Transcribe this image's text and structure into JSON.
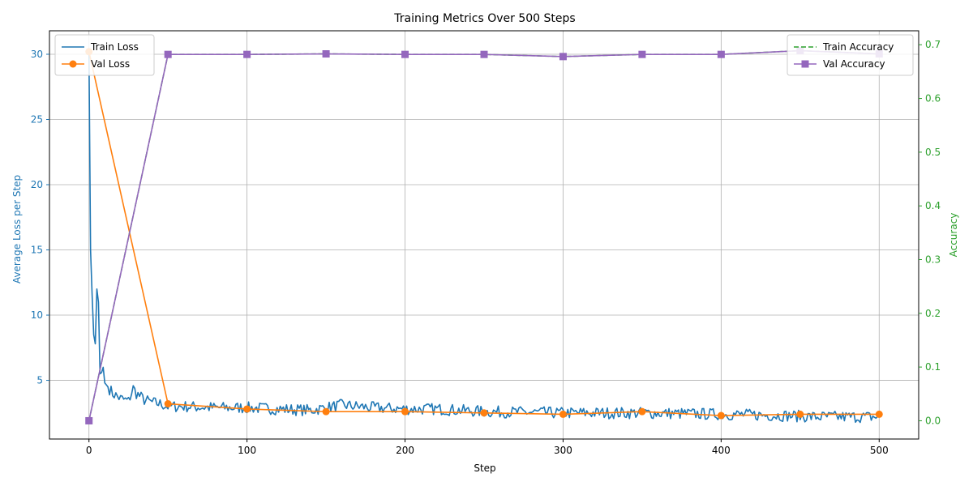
{
  "chart_data": {
    "type": "line",
    "title": "Training Metrics Over 500 Steps",
    "xlabel": "Step",
    "ylabel_left": "Average Loss per Step",
    "ylabel_right": "Accuracy",
    "xlim": [
      -25,
      525
    ],
    "ylim_left": [
      0.5,
      31.8
    ],
    "ylim_right": [
      -0.034,
      0.726
    ],
    "x_ticks": [
      0,
      100,
      200,
      300,
      400,
      500
    ],
    "y_ticks_left": [
      5,
      10,
      15,
      20,
      25,
      30
    ],
    "y_ticks_right": [
      0.0,
      0.1,
      0.2,
      0.3,
      0.4,
      0.5,
      0.6,
      0.7
    ],
    "grid": true,
    "left_axis_color": "#1f77b4",
    "right_axis_color": "#2ca02c",
    "series": [
      {
        "name": "Train Loss",
        "axis": "left",
        "color": "#1f77b4",
        "style": "solid",
        "marker": "none",
        "keypoints": [
          [
            0,
            30.0
          ],
          [
            1,
            15.0
          ],
          [
            2,
            11.5
          ],
          [
            3,
            8.5
          ],
          [
            4,
            7.8
          ],
          [
            5,
            12.0
          ],
          [
            6,
            11.0
          ],
          [
            7,
            5.5
          ],
          [
            8,
            5.6
          ],
          [
            9,
            6.0
          ],
          [
            10,
            4.8
          ],
          [
            12,
            4.5
          ],
          [
            15,
            4.0
          ],
          [
            20,
            3.6
          ],
          [
            25,
            3.4
          ],
          [
            28,
            4.4
          ],
          [
            30,
            4.0
          ],
          [
            35,
            3.5
          ],
          [
            40,
            3.3
          ],
          [
            45,
            3.2
          ],
          [
            50,
            3.0
          ],
          [
            60,
            3.0
          ],
          [
            80,
            2.9
          ],
          [
            100,
            2.9
          ],
          [
            120,
            2.8
          ],
          [
            140,
            2.7
          ],
          [
            160,
            3.1
          ],
          [
            180,
            2.9
          ],
          [
            200,
            2.8
          ],
          [
            220,
            2.8
          ],
          [
            250,
            2.6
          ],
          [
            300,
            2.5
          ],
          [
            350,
            2.5
          ],
          [
            400,
            2.4
          ],
          [
            440,
            2.3
          ],
          [
            460,
            2.2
          ],
          [
            500,
            2.2
          ]
        ]
      },
      {
        "name": "Val Loss",
        "axis": "left",
        "color": "#ff7f0e",
        "style": "solid",
        "marker": "circle",
        "x": [
          0,
          50,
          100,
          150,
          200,
          250,
          300,
          350,
          400,
          450,
          500
        ],
        "values": [
          30.2,
          3.2,
          2.8,
          2.6,
          2.6,
          2.5,
          2.4,
          2.6,
          2.3,
          2.4,
          2.4
        ]
      },
      {
        "name": "Train Accuracy",
        "axis": "right",
        "color": "#2ca02c",
        "style": "dashed",
        "marker": "none",
        "x": [
          0,
          50,
          100,
          150,
          200,
          250,
          300,
          350,
          400,
          450,
          500
        ],
        "values": [
          0.0,
          0.682,
          0.682,
          0.683,
          0.682,
          0.682,
          0.678,
          0.682,
          0.682,
          0.689,
          0.683
        ]
      },
      {
        "name": "Val Accuracy",
        "axis": "right",
        "color": "#9467bd",
        "style": "solid",
        "marker": "square",
        "x": [
          0,
          50,
          100,
          150,
          200,
          250,
          300,
          350,
          400,
          450,
          500
        ],
        "values": [
          0.0,
          0.682,
          0.682,
          0.683,
          0.682,
          0.682,
          0.678,
          0.682,
          0.682,
          0.689,
          0.683
        ]
      }
    ],
    "legends": [
      {
        "placement": "top-left",
        "entries": [
          "Train Loss",
          "Val Loss"
        ]
      },
      {
        "placement": "top-right",
        "entries": [
          "Train Accuracy",
          "Val Accuracy"
        ]
      }
    ]
  }
}
